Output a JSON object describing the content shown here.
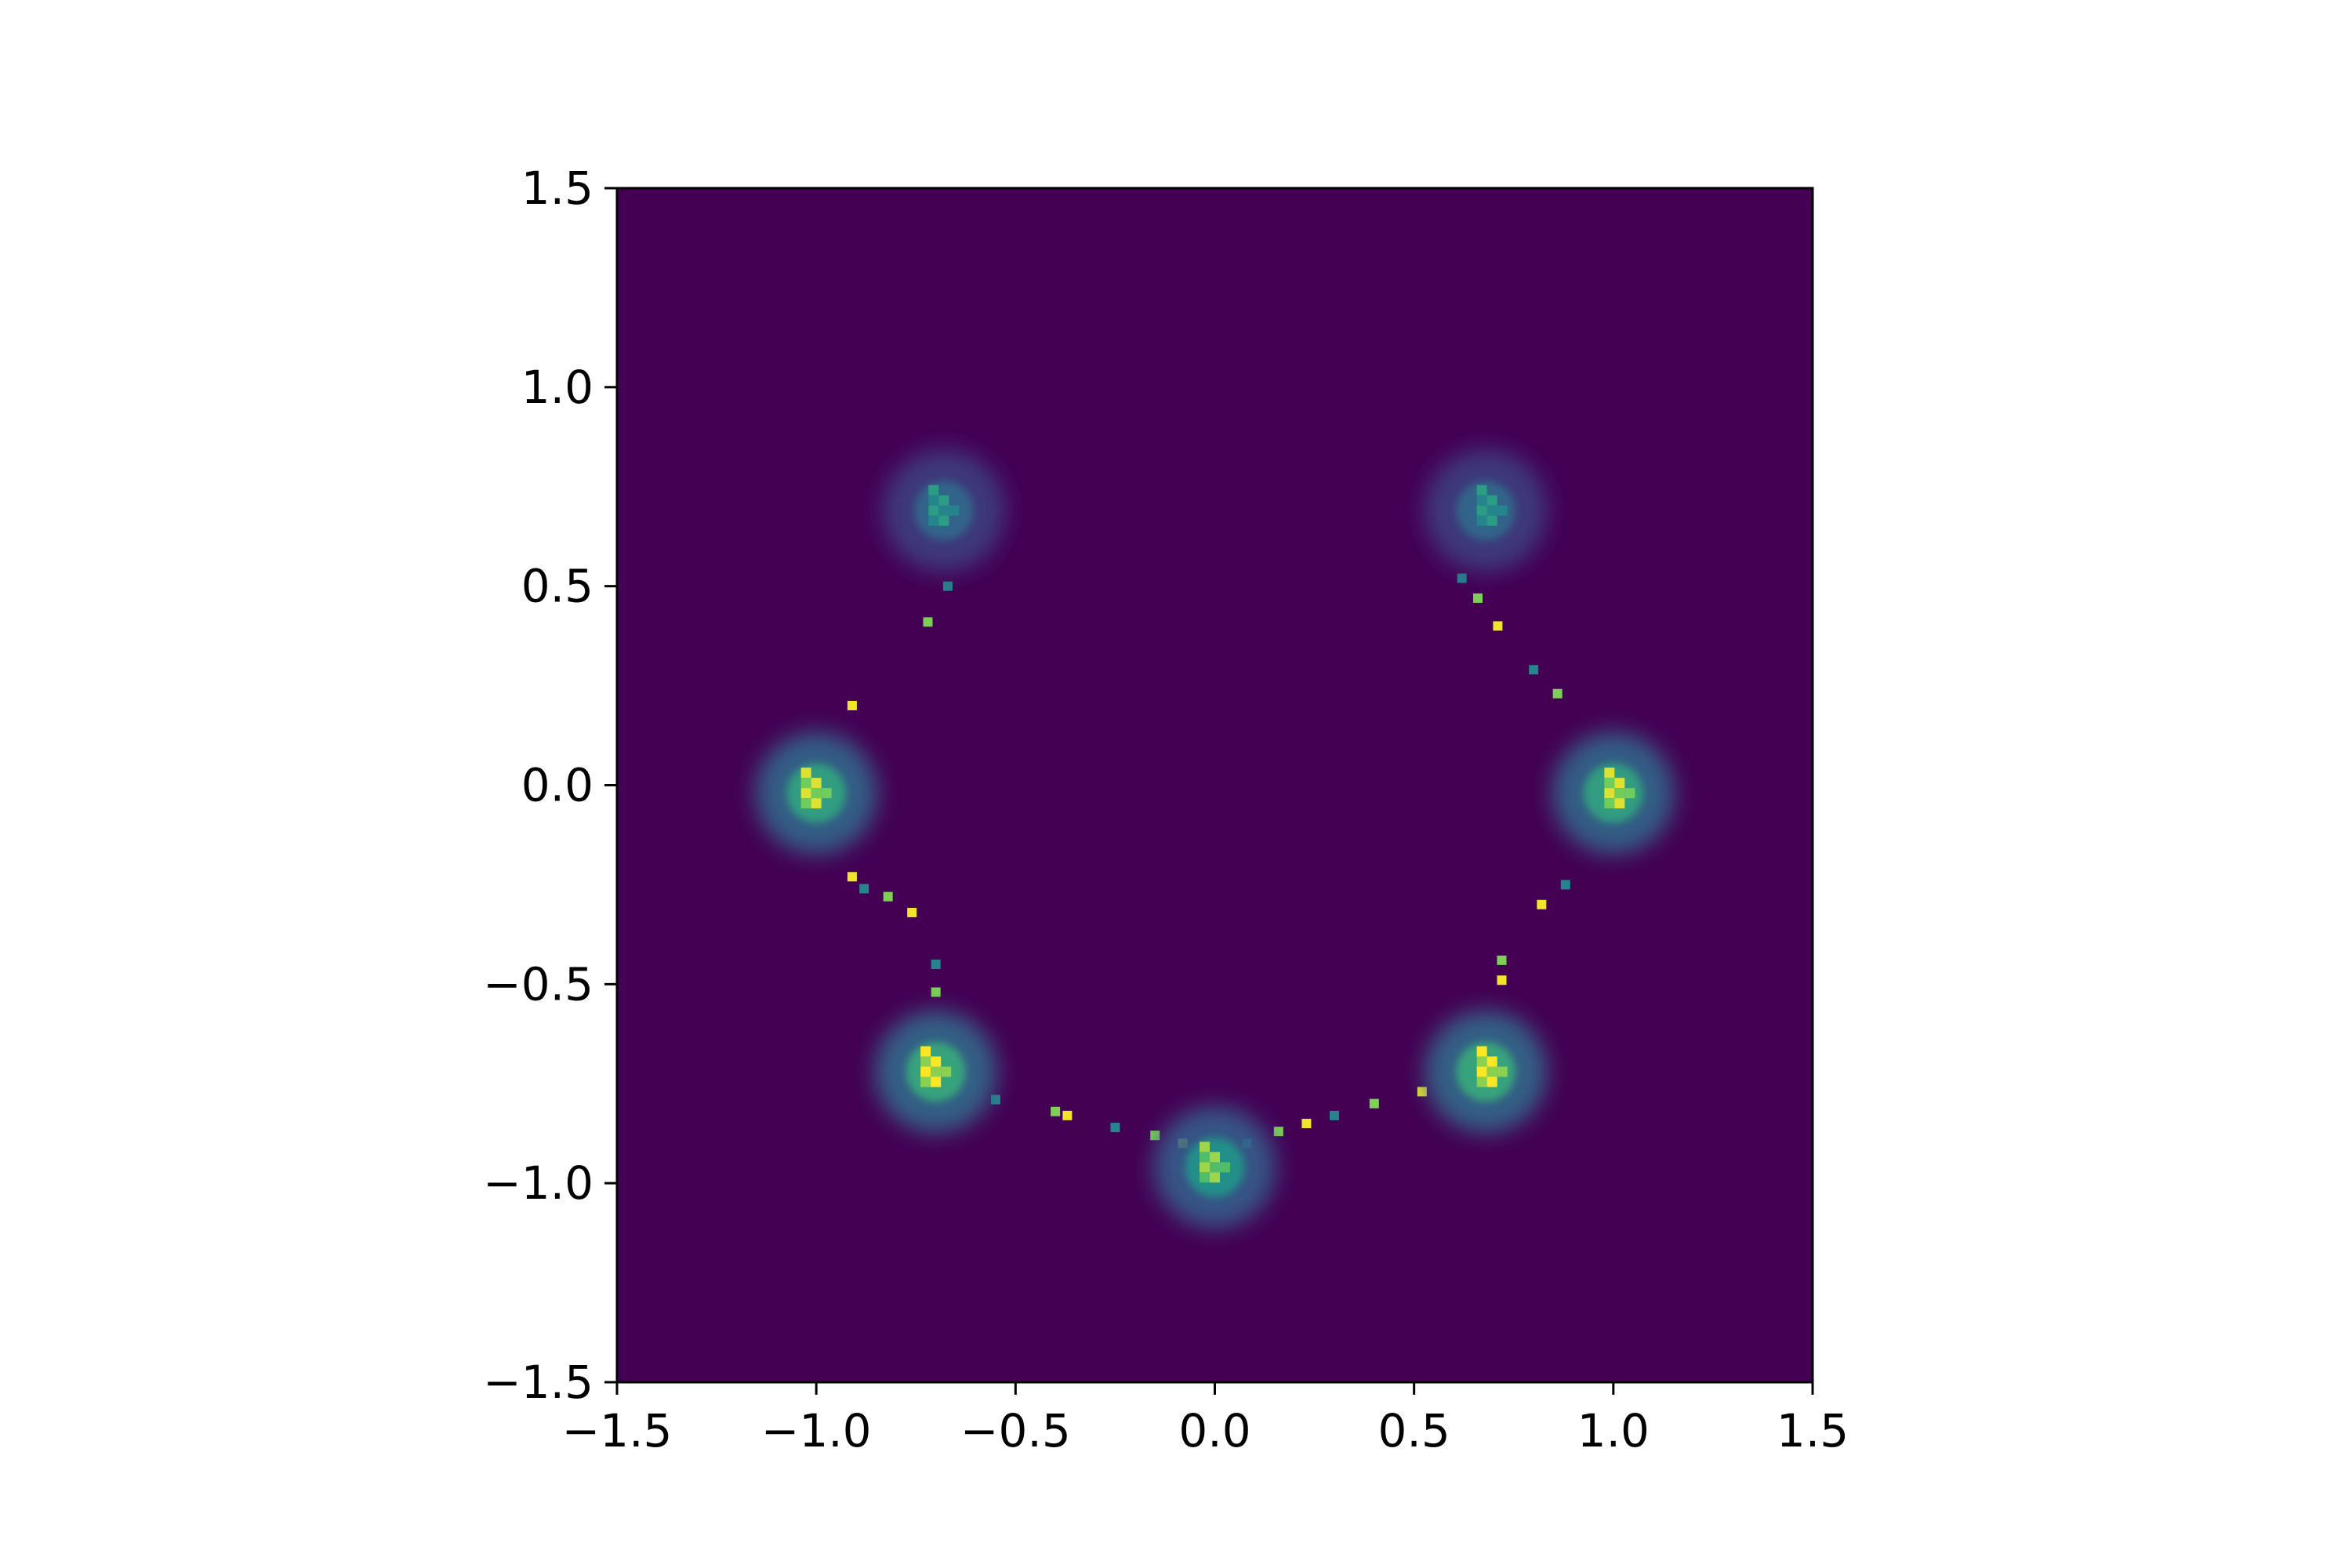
{
  "chart_data": {
    "type": "heatmap",
    "title": "",
    "xlabel": "",
    "ylabel": "",
    "xlim": [
      -1.5,
      1.5
    ],
    "ylim": [
      -1.5,
      1.5
    ],
    "grid": false,
    "colormap": "viridis",
    "background_color": "#440154",
    "x_ticks": [
      -1.5,
      -1.0,
      -0.5,
      0.0,
      0.5,
      1.0,
      1.5
    ],
    "y_ticks": [
      -1.5,
      -1.0,
      -0.5,
      0.0,
      0.5,
      1.0,
      1.5
    ],
    "x_tick_labels": [
      "−1.5",
      "−1.0",
      "−0.5",
      "0.0",
      "0.5",
      "1.0",
      "1.5"
    ],
    "y_tick_labels": [
      "−1.5",
      "−1.0",
      "−0.5",
      "0.0",
      "0.5",
      "1.0",
      "1.5"
    ],
    "hotspots": [
      {
        "x": -0.68,
        "y": 0.69,
        "intensity": 0.55
      },
      {
        "x": 0.68,
        "y": 0.69,
        "intensity": 0.55
      },
      {
        "x": -1.0,
        "y": -0.02,
        "intensity": 0.95
      },
      {
        "x": 1.0,
        "y": -0.02,
        "intensity": 0.95
      },
      {
        "x": -0.7,
        "y": -0.72,
        "intensity": 1.0
      },
      {
        "x": 0.68,
        "y": -0.72,
        "intensity": 1.0
      },
      {
        "x": 0.0,
        "y": -0.96,
        "intensity": 0.85
      }
    ],
    "trail_points": [
      {
        "x": -0.67,
        "y": 0.5
      },
      {
        "x": -0.72,
        "y": 0.41
      },
      {
        "x": -0.91,
        "y": 0.2
      },
      {
        "x": 0.62,
        "y": 0.52
      },
      {
        "x": 0.66,
        "y": 0.47
      },
      {
        "x": 0.71,
        "y": 0.4
      },
      {
        "x": 0.8,
        "y": 0.29
      },
      {
        "x": 0.86,
        "y": 0.23
      },
      {
        "x": -0.91,
        "y": -0.23
      },
      {
        "x": -0.88,
        "y": -0.26
      },
      {
        "x": -0.82,
        "y": -0.28
      },
      {
        "x": -0.76,
        "y": -0.32
      },
      {
        "x": -0.7,
        "y": -0.45
      },
      {
        "x": -0.7,
        "y": -0.52
      },
      {
        "x": 0.82,
        "y": -0.3
      },
      {
        "x": 0.88,
        "y": -0.25
      },
      {
        "x": 0.72,
        "y": -0.44
      },
      {
        "x": 0.72,
        "y": -0.49
      },
      {
        "x": -0.55,
        "y": -0.79
      },
      {
        "x": -0.4,
        "y": -0.82
      },
      {
        "x": -0.37,
        "y": -0.83
      },
      {
        "x": -0.25,
        "y": -0.86
      },
      {
        "x": -0.15,
        "y": -0.88
      },
      {
        "x": -0.08,
        "y": -0.9
      },
      {
        "x": 0.08,
        "y": -0.9
      },
      {
        "x": 0.16,
        "y": -0.87
      },
      {
        "x": 0.23,
        "y": -0.85
      },
      {
        "x": 0.3,
        "y": -0.83
      },
      {
        "x": 0.4,
        "y": -0.8
      },
      {
        "x": 0.52,
        "y": -0.77
      }
    ]
  }
}
